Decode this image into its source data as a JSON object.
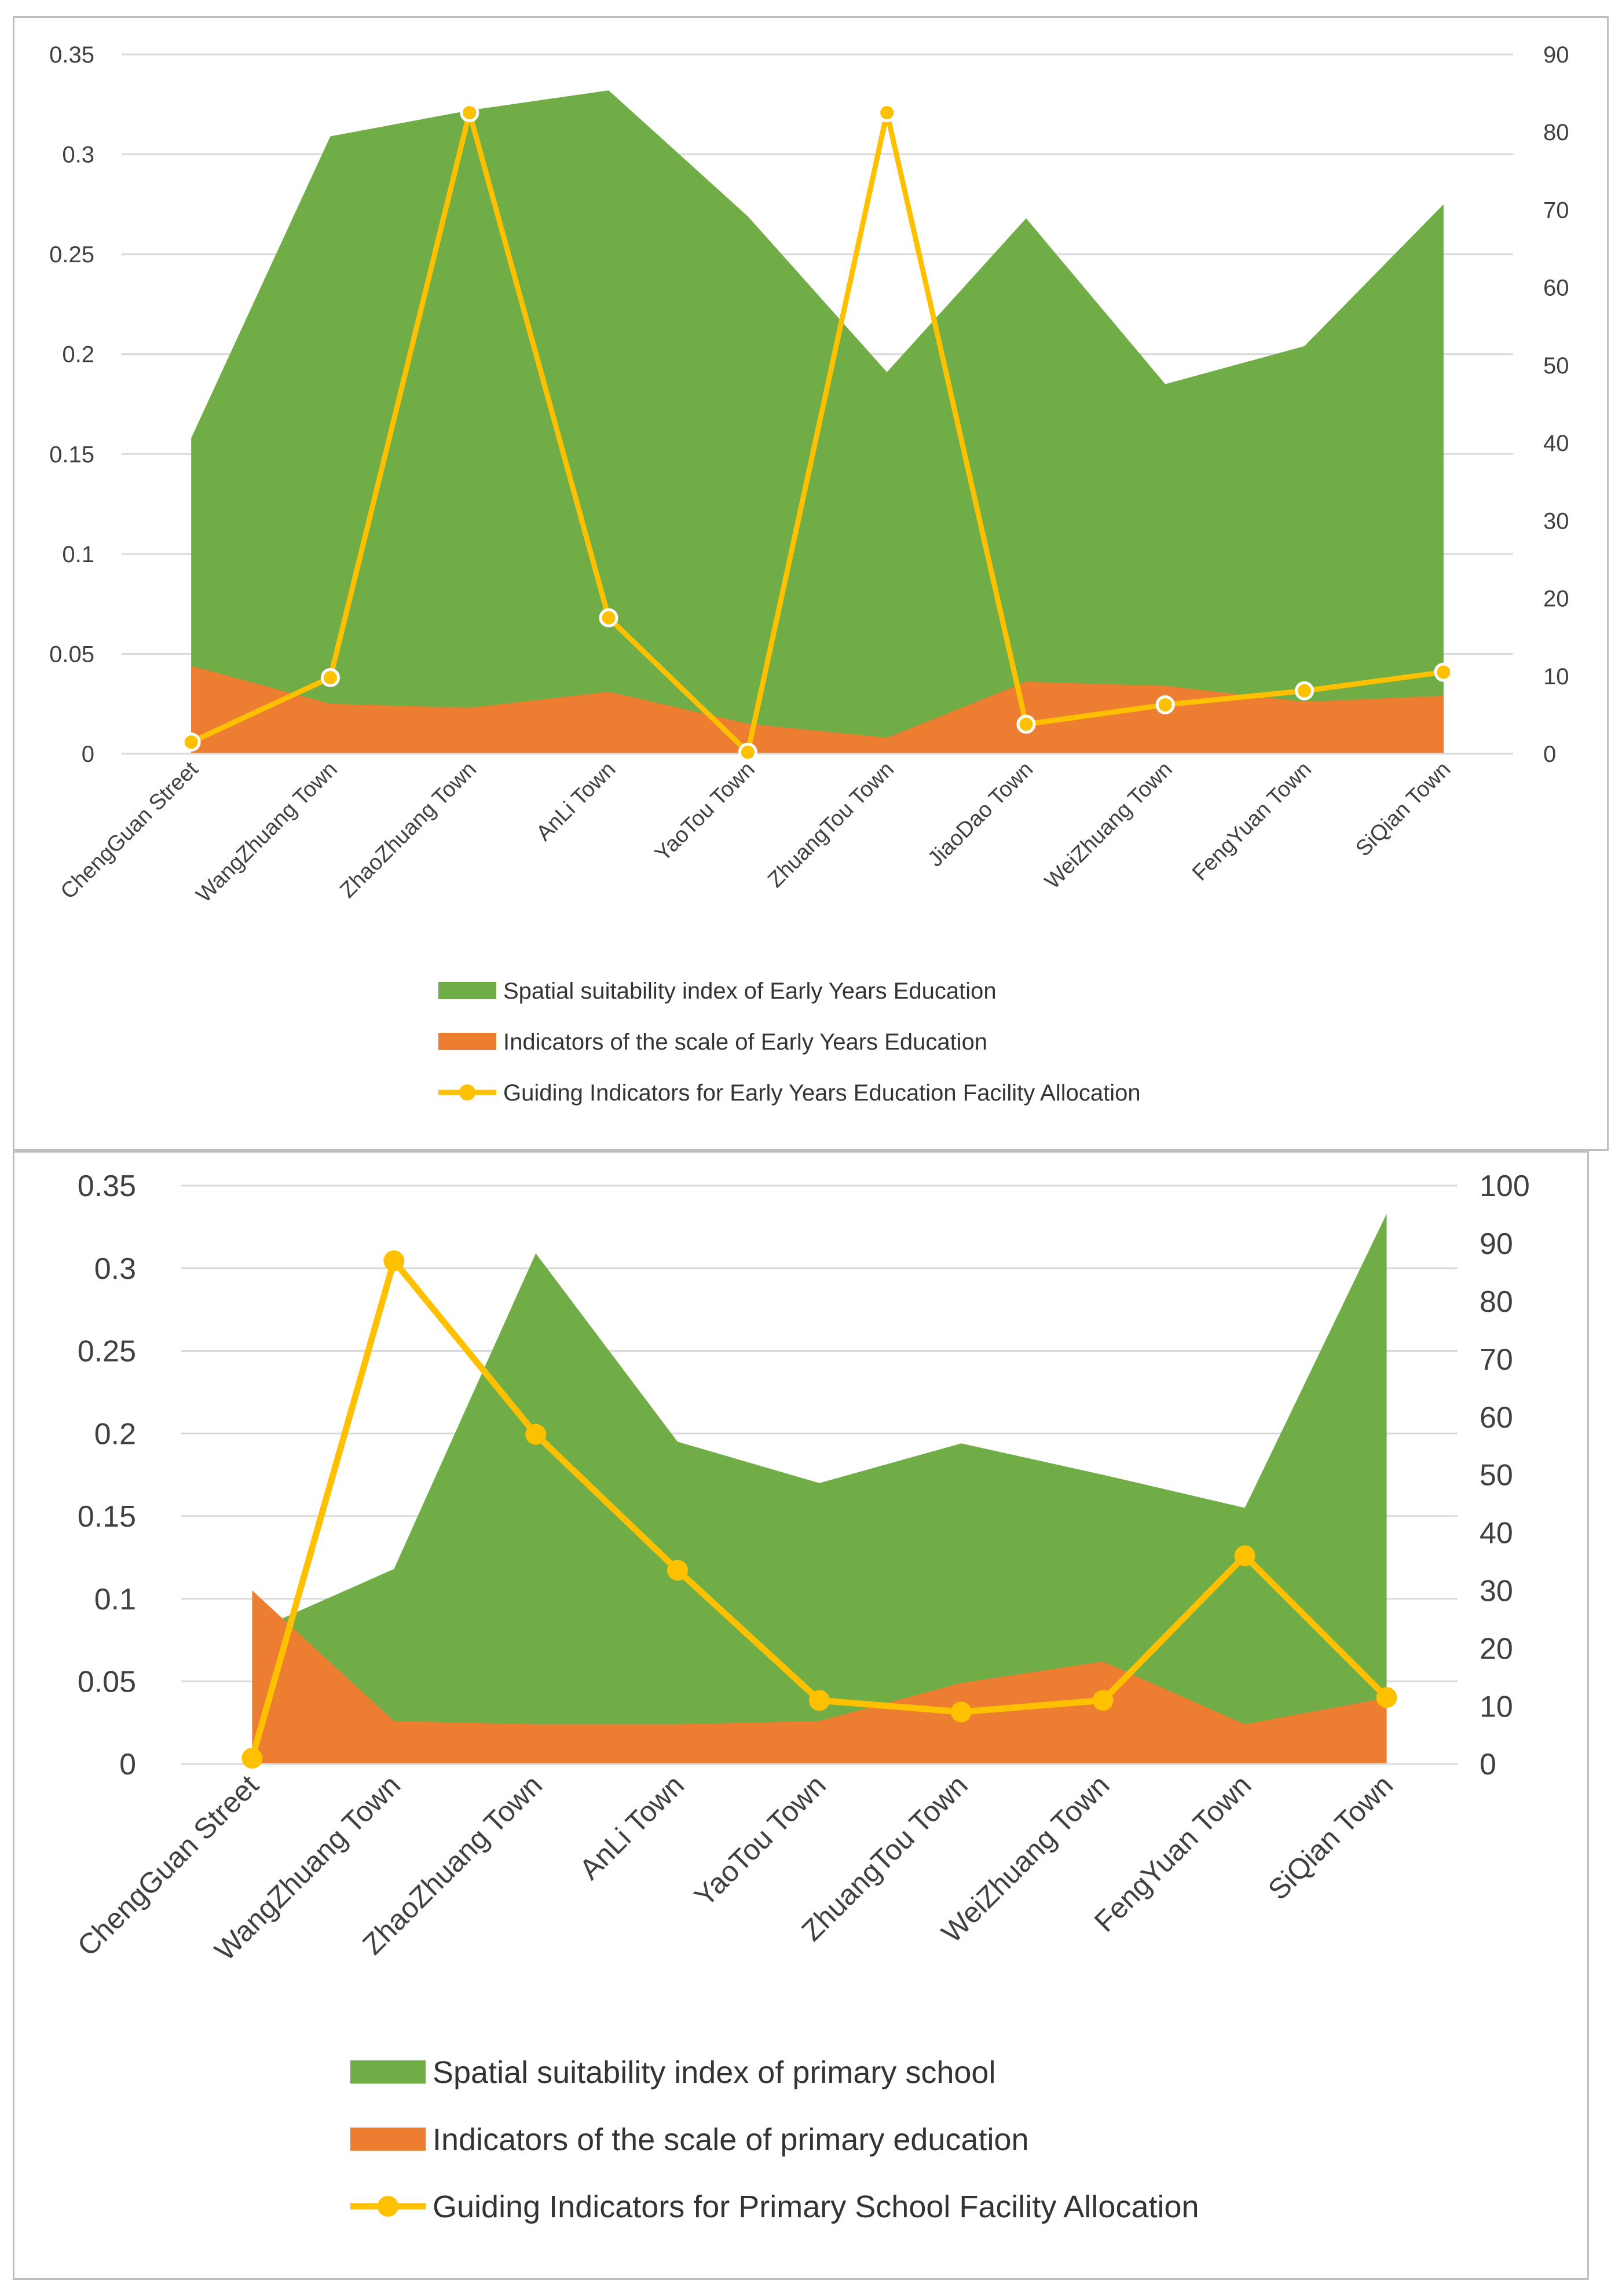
{
  "colors": {
    "suitability": "#70ad47",
    "scale": "#ed7d31",
    "guiding": "#ffc000",
    "grid": "#d9d9d9",
    "axis_text": "#404040"
  },
  "chart_data": [
    {
      "type": "area",
      "categories": [
        "ChengGuan Street",
        "WangZhuang Town",
        "ZhaoZhuang Town",
        "AnLi Town",
        "YaoTou Town",
        "ZhuangTou Town",
        "JiaoDao Town",
        "WeiZhuang Town",
        "FengYuan Town",
        "SiQian Town"
      ],
      "y_left": {
        "min": 0,
        "max": 0.35,
        "ticks": [
          "0",
          "0.05",
          "0.1",
          "0.15",
          "0.2",
          "0.25",
          "0.3",
          "0.35"
        ]
      },
      "y_right": {
        "min": 0,
        "max": 90,
        "ticks": [
          "0",
          "10",
          "20",
          "30",
          "40",
          "50",
          "60",
          "70",
          "80",
          "90"
        ]
      },
      "grid": true,
      "legend_position": "bottom",
      "series": [
        {
          "name": "Spatial suitability index of Early Years Education",
          "type": "area",
          "axis": "left",
          "color": "#70ad47",
          "values": [
            0.158,
            0.309,
            0.322,
            0.332,
            0.269,
            0.191,
            0.268,
            0.185,
            0.204,
            0.275
          ]
        },
        {
          "name": "Indicators of the scale of Early Years Education",
          "type": "area",
          "axis": "left",
          "color": "#ed7d31",
          "values": [
            0.044,
            0.025,
            0.023,
            0.031,
            0.015,
            0.008,
            0.036,
            0.034,
            0.026,
            0.029
          ]
        },
        {
          "name": "Guiding Indicators for Early Years Education Facility Allocation",
          "type": "line",
          "axis": "right",
          "color": "#ffc000",
          "values": [
            1.5,
            9.8,
            82.5,
            17.5,
            0.2,
            82.5,
            3.8,
            6.3,
            8.1,
            10.5
          ]
        }
      ]
    },
    {
      "type": "area",
      "categories": [
        "ChengGuan Street",
        "WangZhuang Town",
        "ZhaoZhuang Town",
        "AnLi Town",
        "YaoTou Town",
        "ZhuangTou Town",
        "WeiZhuang Town",
        "FengYuan Town",
        "SiQian Town"
      ],
      "y_left": {
        "min": 0,
        "max": 0.35,
        "ticks": [
          "0",
          "0.05",
          "0.1",
          "0.15",
          "0.2",
          "0.25",
          "0.3",
          "0.35"
        ]
      },
      "y_right": {
        "min": 0,
        "max": 100,
        "ticks": [
          "0",
          "10",
          "20",
          "30",
          "40",
          "50",
          "60",
          "70",
          "80",
          "90",
          "100"
        ]
      },
      "grid": true,
      "legend_position": "bottom",
      "series": [
        {
          "name": "Spatial suitability index of primary school",
          "type": "area",
          "axis": "left",
          "color": "#70ad47",
          "values": [
            0.08,
            0.118,
            0.309,
            0.195,
            0.17,
            0.194,
            0.175,
            0.155,
            0.333
          ]
        },
        {
          "name": "Indicators of the scale of primary education",
          "type": "area",
          "axis": "left",
          "color": "#ed7d31",
          "values": [
            0.105,
            0.026,
            0.024,
            0.024,
            0.026,
            0.049,
            0.062,
            0.024,
            0.04
          ]
        },
        {
          "name": "Guiding Indicators for Primary School Facility Allocation",
          "type": "line",
          "axis": "right",
          "color": "#ffc000",
          "values": [
            1,
            87,
            57,
            33.5,
            11,
            9,
            11,
            36,
            11.5
          ]
        }
      ]
    }
  ]
}
